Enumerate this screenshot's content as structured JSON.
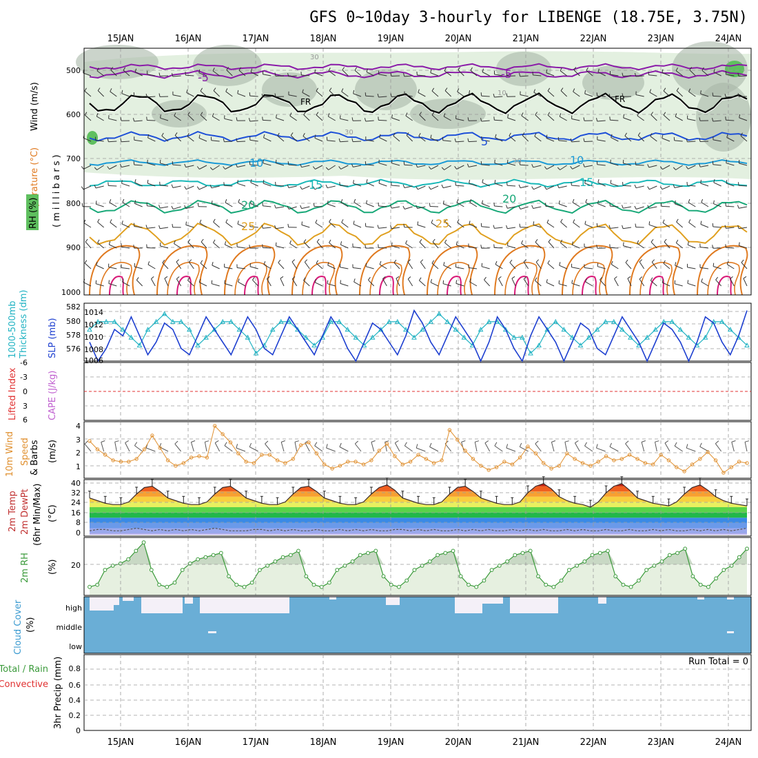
{
  "title": "GFS 0~10day 3-hourly for LIBENGE (18.75E, 3.75N)",
  "dates": [
    "15JAN",
    "16JAN",
    "17JAN",
    "18JAN",
    "19JAN",
    "20JAN",
    "21JAN",
    "22JAN",
    "23JAN",
    "24JAN"
  ],
  "colors": {
    "rh_fill": "#e3f0e0",
    "rh_dark": "#a8b8a8",
    "rh_green": "#5fbf5f",
    "t_minus5": "#8a1aa8",
    "t_fr": "#000000",
    "t_5": "#1d4fd8",
    "t_10": "#1a9ad6",
    "t_15": "#1ab8b8",
    "t_20": "#18a878",
    "t_25": "#e0a020",
    "t_30": "#e07a20",
    "t_35": "#d81a78",
    "slp": "#1d3fd0",
    "thickness": "#21b3c3",
    "wind10": "#e09030",
    "barb": "#555555",
    "rh2m": "#3a9a3a",
    "cloud": "#6aaed6",
    "cloud_gap": "#f4f0f8",
    "lifted": "#e03030"
  },
  "panels": {
    "upper": {
      "labels": [
        {
          "text": "Wind (m/s)",
          "color": "#000000"
        },
        {
          "text": "Temperature (°C)",
          "color": "#e07a20"
        },
        {
          "text": "(millibars)",
          "color": "#000000"
        },
        {
          "text": "RH (%)",
          "color": "#000000"
        }
      ],
      "y_ticks": [
        "500",
        "600",
        "700",
        "800",
        "900",
        "1000"
      ],
      "contour_labels": [
        "-5",
        "-5",
        "FR",
        "FR",
        "5",
        "10",
        "10",
        "15",
        "15",
        "20",
        "20",
        "25",
        "25",
        "30",
        "30",
        "30",
        "10"
      ]
    },
    "slp": {
      "left_labels": [
        "1000-500mb",
        "Thickness (dm)"
      ],
      "right_labels": [
        "SLP (mb)"
      ],
      "thick_ticks": [
        "582",
        "580",
        "578",
        "576"
      ],
      "slp_ticks": [
        "1014",
        "1012",
        "1010",
        "1008",
        "1006"
      ]
    },
    "cape": {
      "left_labels": [
        "Lifted Index"
      ],
      "right_labels": [
        "CAPE (J/kg)"
      ],
      "ticks": [
        "-6",
        "-3",
        "0",
        "3",
        "6"
      ]
    },
    "wind10": {
      "labels": [
        "10m Wind",
        "Speed",
        "& Barbs",
        "(m/s)"
      ],
      "ticks": [
        "4",
        "3",
        "2",
        "1"
      ]
    },
    "temp2m": {
      "labels": [
        "2m Temp",
        "2m DewPt",
        "(6hr Min/Max)",
        "(°C)"
      ],
      "ticks": [
        "40",
        "32",
        "24",
        "16",
        "8",
        "0"
      ]
    },
    "rh2m": {
      "labels": [
        "2m RH",
        "(%)"
      ],
      "ticks": [
        "20"
      ]
    },
    "cloud": {
      "labels": [
        "Cloud Cover",
        "(%)"
      ],
      "levels": [
        "high",
        "middle",
        "low"
      ]
    },
    "precip": {
      "labels": [
        "Total / Rain",
        "Convective",
        "3hr Precip (mm)"
      ],
      "ticks": [
        "0.8",
        "0.6",
        "0.4",
        "0.2",
        "0"
      ],
      "run_total": "Run Total = 0"
    }
  },
  "chart_data": [
    {
      "type": "line",
      "name": "SLP / thickness",
      "series": [
        {
          "name": "SLP (mb)",
          "values": [
            1009,
            1006,
            1008,
            1011,
            1010,
            1013,
            1010,
            1007,
            1009,
            1012,
            1011,
            1008,
            1007,
            1010,
            1013,
            1011,
            1009,
            1007,
            1010,
            1013,
            1011,
            1008,
            1007,
            1010,
            1013,
            1011,
            1009,
            1007,
            1010,
            1013,
            1011,
            1008,
            1006,
            1009,
            1012,
            1011,
            1009,
            1007,
            1010,
            1014,
            1012,
            1009,
            1007,
            1010,
            1013,
            1011,
            1009,
            1006,
            1009,
            1013,
            1011,
            1008,
            1006,
            1010,
            1013,
            1011,
            1009,
            1006,
            1009,
            1012,
            1011,
            1008,
            1007,
            1010,
            1013,
            1011,
            1009,
            1006,
            1009,
            1012,
            1011,
            1009,
            1006,
            1009,
            1013,
            1012,
            1009,
            1007,
            1010,
            1014
          ]
        },
        {
          "name": "Thickness (dm)",
          "values": [
            579,
            580,
            580,
            580,
            579,
            578,
            577,
            579,
            580,
            581,
            580,
            580,
            579,
            577,
            578,
            579,
            580,
            580,
            579,
            578,
            576,
            577,
            579,
            580,
            580,
            579,
            578,
            577,
            578,
            580,
            580,
            579,
            578,
            577,
            578,
            579,
            580,
            580,
            579,
            578,
            579,
            580,
            581,
            580,
            579,
            578,
            577,
            579,
            580,
            580,
            579,
            578,
            578,
            576,
            577,
            579,
            580,
            579,
            578,
            577,
            578,
            579,
            580,
            580,
            579,
            578,
            577,
            578,
            579,
            580,
            580,
            579,
            578,
            577,
            578,
            580,
            580,
            579,
            578,
            577
          ]
        }
      ]
    },
    {
      "type": "line",
      "name": "10m wind speed",
      "series": [
        {
          "name": "10m Wind Speed (m/s)",
          "values": [
            2.9,
            2.3,
            1.9,
            1.5,
            1.4,
            1.4,
            1.6,
            2.3,
            3.3,
            2.4,
            1.5,
            1.1,
            1.3,
            1.7,
            1.8,
            1.7,
            4.0,
            3.4,
            2.8,
            2.0,
            1.4,
            1.3,
            1.9,
            1.9,
            1.5,
            1.3,
            1.6,
            2.6,
            2.8,
            2.0,
            1.2,
            0.9,
            1.1,
            1.4,
            1.4,
            1.2,
            1.5,
            2.2,
            2.7,
            1.8,
            1.2,
            1.4,
            1.9,
            1.6,
            1.3,
            1.5,
            3.7,
            3.0,
            2.2,
            1.6,
            1.1,
            0.8,
            1.0,
            1.4,
            1.2,
            1.7,
            2.5,
            2.0,
            1.3,
            0.9,
            1.1,
            2.0,
            1.6,
            1.3,
            1.1,
            1.4,
            1.8,
            1.5,
            1.6,
            1.9,
            1.6,
            1.3,
            1.2,
            1.9,
            1.5,
            1.0,
            0.7,
            1.2,
            1.6,
            2.1,
            1.5,
            0.6,
            1.0,
            1.4,
            1.3
          ]
        }
      ]
    },
    {
      "type": "area",
      "name": "2m temperature",
      "series": [
        {
          "name": "2m Temp (°C)",
          "values": [
            27,
            25,
            23,
            22,
            22,
            24,
            30,
            35,
            36,
            32,
            27,
            25,
            23,
            22,
            22,
            24,
            30,
            35,
            36,
            32,
            27,
            25,
            23,
            22,
            22,
            24,
            30,
            35,
            36,
            32,
            27,
            25,
            23,
            22,
            22,
            24,
            30,
            35,
            37,
            33,
            27,
            25,
            23,
            22,
            22,
            24,
            30,
            35,
            36,
            32,
            27,
            25,
            23,
            22,
            22,
            24,
            31,
            36,
            38,
            34,
            28,
            25,
            23,
            22,
            20,
            24,
            31,
            36,
            38,
            33,
            27,
            25,
            23,
            22,
            21,
            24,
            30,
            35,
            37,
            33,
            28,
            25,
            23,
            22,
            21
          ]
        },
        {
          "name": "2m DewPt (°C)",
          "values": [
            2,
            3,
            3,
            2,
            2,
            3,
            4,
            3,
            2,
            3,
            2,
            3,
            2,
            3,
            2,
            3,
            4,
            3,
            2,
            2,
            2,
            3,
            3,
            2,
            3,
            2,
            3,
            2,
            2,
            3,
            2,
            2,
            3,
            2,
            3,
            2,
            3,
            2,
            2,
            3,
            3,
            2,
            3,
            2,
            3,
            2,
            2,
            3,
            2,
            3,
            2,
            3,
            2,
            2,
            3,
            2,
            3,
            2,
            3,
            2,
            2,
            3,
            2,
            3,
            2,
            2,
            3,
            2,
            2,
            3,
            2,
            2,
            3,
            2,
            3,
            2,
            2,
            3,
            2,
            3,
            2,
            3,
            2,
            3,
            4
          ]
        }
      ]
    },
    {
      "type": "area",
      "name": "2m RH",
      "series": [
        {
          "name": "2m RH (%)",
          "values": [
            14,
            15,
            22,
            24,
            25,
            27,
            31,
            35,
            22,
            15,
            14,
            16,
            22,
            25,
            27,
            28,
            29,
            30,
            19,
            15,
            14,
            16,
            22,
            24,
            26,
            28,
            29,
            31,
            19,
            15,
            14,
            16,
            22,
            24,
            26,
            29,
            30,
            31,
            19,
            15,
            14,
            17,
            22,
            24,
            26,
            29,
            30,
            31,
            19,
            15,
            14,
            17,
            22,
            24,
            26,
            29,
            30,
            31,
            19,
            15,
            14,
            17,
            22,
            24,
            26,
            29,
            30,
            31,
            19,
            15,
            14,
            17,
            22,
            24,
            26,
            29,
            30,
            32,
            19,
            15,
            14,
            18,
            22,
            24,
            28,
            32
          ]
        }
      ]
    },
    {
      "type": "bar",
      "name": "3hr precip",
      "values": [],
      "ylim": [
        0,
        0.9
      ]
    }
  ]
}
